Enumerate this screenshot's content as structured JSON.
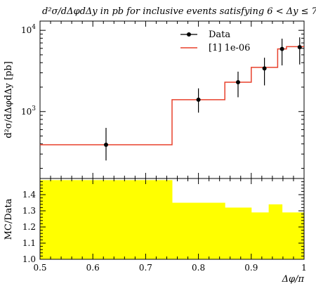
{
  "chart_data": [
    {
      "type": "line",
      "title": "d²σ/dΔφdΔy in pb for inclusive events satisfying 6 < Δy ≤ 7",
      "xlabel": "",
      "ylabel": "d²σ/dΔφdΔy [pb]",
      "yscale": "log",
      "xlim": [
        0.5,
        1.0
      ],
      "ylim": [
        150,
        13000
      ],
      "grid": false,
      "legend": "top-right",
      "series": [
        {
          "name": "Data",
          "kind": "points-with-errors",
          "color": "#000000",
          "x": [
            0.625,
            0.8,
            0.875,
            0.925,
            0.9583,
            0.9917
          ],
          "y": [
            390,
            1400,
            2300,
            3400,
            5900,
            6200
          ],
          "yerr_low": [
            140,
            430,
            800,
            1300,
            2200,
            2400
          ],
          "yerr_high": [
            240,
            530,
            800,
            1200,
            2000,
            2000
          ]
        },
        {
          "name": "[1] 1e-06",
          "kind": "histogram",
          "color": "#e8412c",
          "bin_edges": [
            0.5,
            0.75,
            0.85,
            0.9,
            0.95,
            0.9667,
            1.0
          ],
          "values": [
            390,
            1400,
            2300,
            3500,
            5900,
            6300
          ]
        }
      ],
      "yticks": [
        {
          "base": "10",
          "exp": "3",
          "value": 1000
        },
        {
          "base": "10",
          "exp": "4",
          "value": 10000
        }
      ]
    },
    {
      "type": "bar",
      "title": "",
      "xlabel": "Δφ/π",
      "ylabel": "MC/Data",
      "xlim": [
        0.5,
        1.0
      ],
      "ylim": [
        1.0,
        1.5
      ],
      "fill_color": "#ffff00",
      "bin_edges": [
        0.5,
        0.75,
        0.85,
        0.9,
        0.933,
        0.9583,
        0.9875,
        1.0
      ],
      "values": [
        1.49,
        1.35,
        1.32,
        1.29,
        1.34,
        1.29,
        1.29
      ],
      "xticks": [
        "0.5",
        "0.6",
        "0.7",
        "0.8",
        "0.9",
        "1"
      ],
      "yticks": [
        "1.0",
        "1.1",
        "1.2",
        "1.3",
        "1.4"
      ]
    }
  ]
}
